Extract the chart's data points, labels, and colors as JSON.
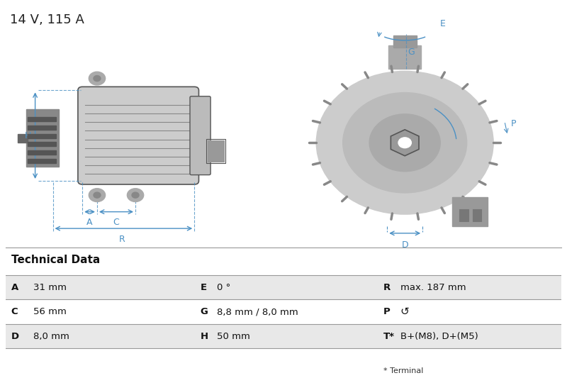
{
  "title": "14 V, 115 A",
  "bg_color": "#ffffff",
  "table_header": "Technical Data",
  "table_row_bg": [
    "#e8e8e8",
    "#ffffff",
    "#e8e8e8"
  ],
  "table_data": [
    [
      [
        "A",
        "31 mm"
      ],
      [
        "E",
        "0 °"
      ],
      [
        "R",
        "max. 187 mm"
      ]
    ],
    [
      [
        "C",
        "56 mm"
      ],
      [
        "G",
        "8,8 mm / 8,0 mm"
      ],
      [
        "P",
        "↺"
      ]
    ],
    [
      [
        "D",
        "8,0 mm"
      ],
      [
        "H",
        "50 mm"
      ],
      [
        "T*",
        "B+(M8), D+(M5)"
      ]
    ]
  ],
  "table_footnote": "* Terminal",
  "diagram_color": "#3a7abf",
  "line_color": "#4a90c4",
  "dark_color": "#555555",
  "outline_color": "#888888"
}
